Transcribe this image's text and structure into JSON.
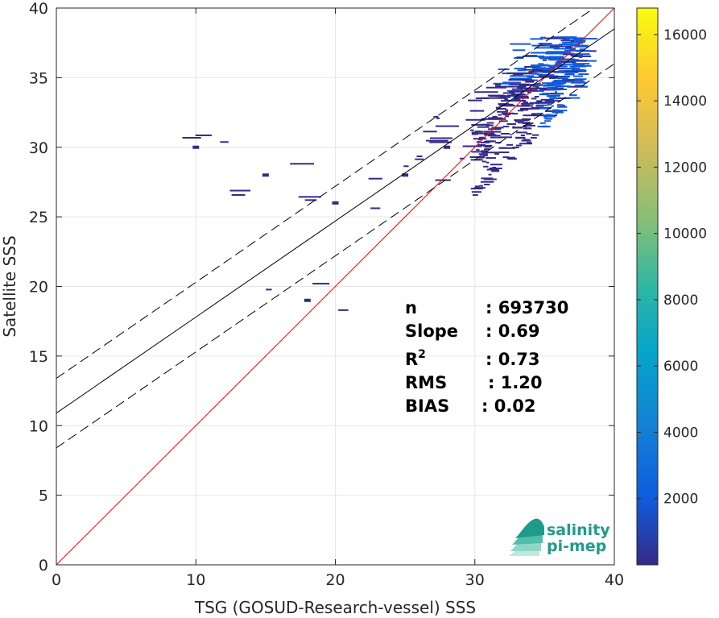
{
  "chart_data": {
    "type": "heatmap",
    "xlabel": "TSG (GOSUD-Research-vessel) SSS",
    "ylabel": "Satellite SSS",
    "xlim": [
      0,
      40
    ],
    "ylim": [
      0,
      40
    ],
    "x_ticks": [
      0,
      10,
      20,
      30,
      40
    ],
    "y_ticks": [
      0,
      5,
      10,
      15,
      20,
      25,
      30,
      35,
      40
    ],
    "grid": true,
    "colorbar": {
      "colormap": "parula",
      "range": [
        0,
        16800
      ],
      "ticks": [
        2000,
        4000,
        6000,
        8000,
        10000,
        12000,
        14000,
        16000
      ]
    },
    "lines": [
      {
        "role": "one-to-one",
        "color": "#ff0000",
        "intercept": 0,
        "slope": 1
      },
      {
        "role": "regression",
        "color": "#000000",
        "intercept": 10.9,
        "slope": 0.69
      },
      {
        "role": "regression-upper-bound",
        "color": "#000000",
        "dash": true,
        "intercept": 13.4,
        "slope": 0.69
      },
      {
        "role": "regression-lower-bound",
        "color": "#000000",
        "dash": true,
        "intercept": 8.4,
        "slope": 0.69
      }
    ],
    "stats": [
      {
        "label": "n",
        "sep": ":",
        "value": "693730"
      },
      {
        "label": "Slope",
        "sep": ":",
        "value": "0.69"
      },
      {
        "label": "R",
        "sup": "2",
        "sep": ":",
        "value": "0.73"
      },
      {
        "label": "RMS",
        "sep": ":",
        "value": "1.20"
      },
      {
        "label": "BIAS",
        "sep": ":",
        "value": "0.02"
      }
    ],
    "density_points": [
      {
        "x": 34.5,
        "y": 34.5,
        "count": 3000
      },
      {
        "x": 36,
        "y": 36,
        "count": 3500
      },
      {
        "x": 37,
        "y": 37,
        "count": 3800
      },
      {
        "x": 33,
        "y": 33.5,
        "count": 1800
      },
      {
        "x": 30,
        "y": 31,
        "count": 800
      },
      {
        "x": 28,
        "y": 30,
        "count": 400
      },
      {
        "x": 25,
        "y": 28,
        "count": 150
      },
      {
        "x": 20,
        "y": 26,
        "count": 60
      },
      {
        "x": 15,
        "y": 28,
        "count": 40
      },
      {
        "x": 10,
        "y": 30,
        "count": 20
      },
      {
        "x": 18,
        "y": 19,
        "count": 30
      }
    ]
  },
  "logo": {
    "line1": "salinity",
    "line2": "pi-mep",
    "color_dark": "#1f9b8c",
    "color_light": "#8fd6c8"
  }
}
